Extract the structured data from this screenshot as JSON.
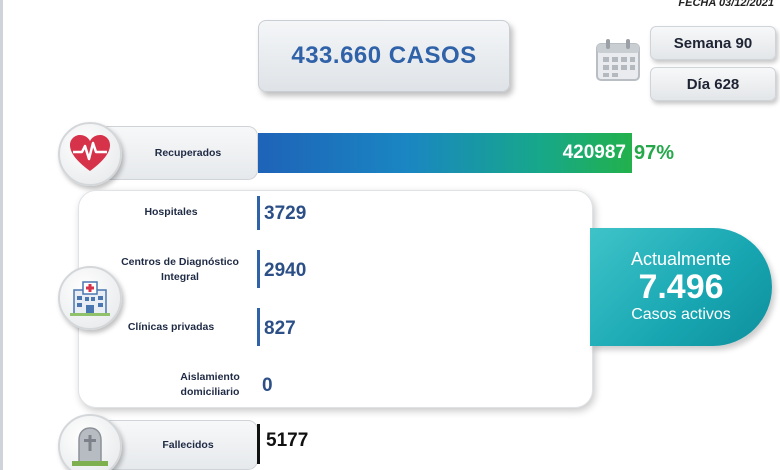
{
  "header": {
    "date": "FECHA 03/12/2021",
    "total_cases": "433.660 CASOS",
    "week": "Semana 90",
    "day": "Día 628"
  },
  "recovered": {
    "label": "Recuperados",
    "value": "420987",
    "percent": "97%"
  },
  "locations": [
    {
      "label": "Hospitales",
      "value": "3729"
    },
    {
      "label": "Centros de Diagnóstico Integral",
      "value": "2940"
    },
    {
      "label": "Clínicas privadas",
      "value": "827"
    },
    {
      "label": "Aislamiento domiciliario",
      "value": "0"
    }
  ],
  "active": {
    "line1": "Actualmente",
    "value": "7.496",
    "line3": "Casos activos"
  },
  "deceased": {
    "label": "Fallecidos",
    "value": "5177"
  },
  "icons": {
    "recovered": "heart-pulse-icon",
    "hospital": "hospital-icon",
    "deceased": "gravestone-icon",
    "calendar": "calendar-icon"
  },
  "colors": {
    "accent_blue": "#2f62a8",
    "recovered_green": "#25a84a",
    "active_teal": "#17a6b1"
  }
}
